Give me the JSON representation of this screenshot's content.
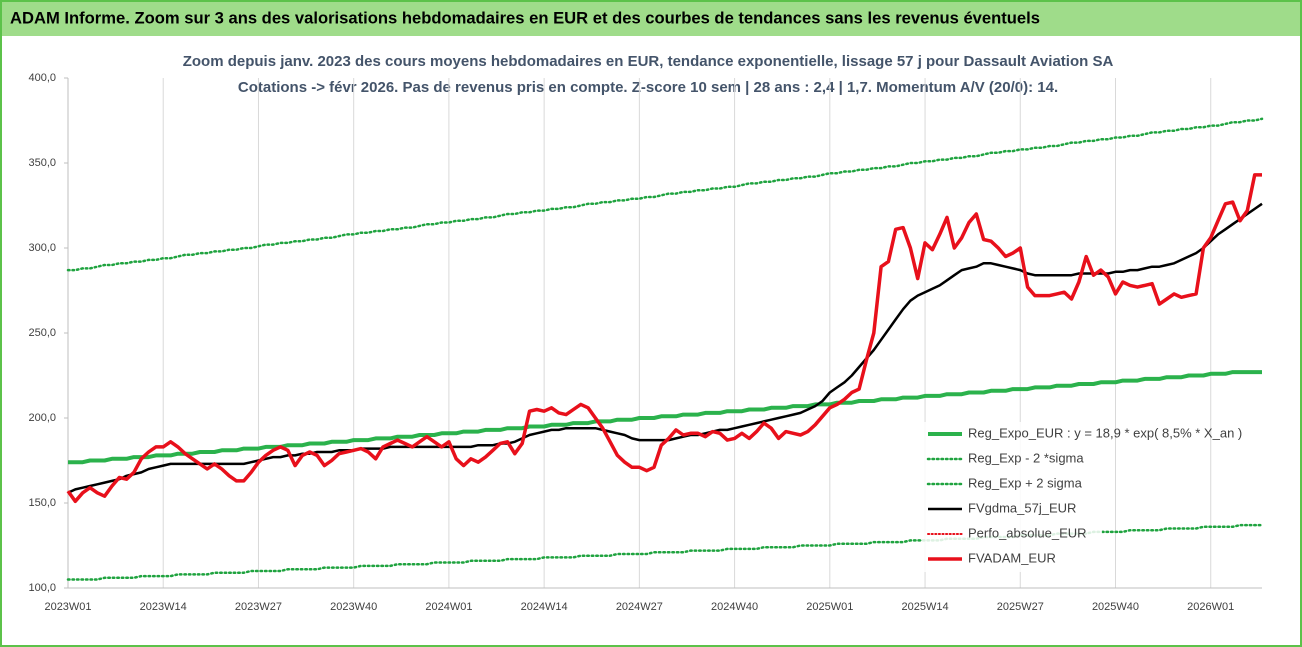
{
  "header": {
    "title": "ADAM Informe. Zoom sur 3 ans des valorisations hebdomadaires en EUR et des courbes de tendances sans les revenus éventuels"
  },
  "chart_data": {
    "type": "line",
    "title": "Zoom depuis janv. 2023 des cours moyens hebdomadaires en EUR, tendance exponentielle, lissage 57 j pour Dassault Aviation SA",
    "subtitle": "Cotations -> févr 2026. Pas de revenus pris en compte. Z-score 10 sem | 28 ans : 2,4 | 1,7. Momentum A/V (20/0): 14.",
    "categories": [
      "2023W01",
      null,
      null,
      null,
      null,
      null,
      null,
      null,
      null,
      null,
      null,
      null,
      null,
      "2023W14",
      null,
      null,
      null,
      null,
      null,
      null,
      null,
      null,
      null,
      null,
      null,
      null,
      "2023W27",
      null,
      null,
      null,
      null,
      null,
      null,
      null,
      null,
      null,
      null,
      null,
      null,
      "2023W40",
      null,
      null,
      null,
      null,
      null,
      null,
      null,
      null,
      null,
      null,
      null,
      null,
      "2024W01",
      null,
      null,
      null,
      null,
      null,
      null,
      null,
      null,
      null,
      null,
      null,
      null,
      "2024W14",
      null,
      null,
      null,
      null,
      null,
      null,
      null,
      null,
      null,
      null,
      null,
      null,
      "2024W27",
      null,
      null,
      null,
      null,
      null,
      null,
      null,
      null,
      null,
      null,
      null,
      null,
      "2024W40",
      null,
      null,
      null,
      null,
      null,
      null,
      null,
      null,
      null,
      null,
      null,
      null,
      "2025W01",
      null,
      null,
      null,
      null,
      null,
      null,
      null,
      null,
      null,
      null,
      null,
      null,
      "2025W14",
      null,
      null,
      null,
      null,
      null,
      null,
      null,
      null,
      null,
      null,
      null,
      null,
      "2025W27",
      null,
      null,
      null,
      null,
      null,
      null,
      null,
      null,
      null,
      null,
      null,
      null,
      "2025W40",
      null,
      null,
      null,
      null,
      null,
      null,
      null,
      null,
      null,
      null,
      null,
      null,
      "2026W01",
      null,
      null,
      null,
      null,
      null,
      null,
      null
    ],
    "ylim": [
      100,
      400
    ],
    "yticks": [
      {
        "value": 100,
        "label": "100,0"
      },
      {
        "value": 150,
        "label": "150,0"
      },
      {
        "value": 200,
        "label": "200,0"
      },
      {
        "value": 250,
        "label": "250,0"
      },
      {
        "value": 300,
        "label": "300,0"
      },
      {
        "value": 350,
        "label": "350,0"
      },
      {
        "value": 400,
        "label": "400,0"
      }
    ],
    "xgrid": true,
    "legend": "lower right",
    "series": [
      {
        "name": "Reg_Expo_EUR : y = 18,9 * exp( 8,5% *  X_an )",
        "color": "#2bb24c",
        "style": "solid",
        "width": 4,
        "values": [
          174,
          174,
          174,
          175,
          175,
          175,
          176,
          176,
          176,
          177,
          177,
          177,
          178,
          178,
          178,
          179,
          179,
          179,
          180,
          180,
          180,
          181,
          181,
          181,
          182,
          182,
          182,
          183,
          183,
          183,
          184,
          184,
          184,
          185,
          185,
          185,
          186,
          186,
          186,
          187,
          187,
          187,
          188,
          188,
          188,
          189,
          189,
          189,
          190,
          190,
          190,
          191,
          191,
          191,
          192,
          192,
          192,
          193,
          193,
          193,
          194,
          194,
          194,
          195,
          195,
          195,
          196,
          196,
          196,
          197,
          197,
          197,
          198,
          198,
          198,
          199,
          199,
          199,
          200,
          200,
          200,
          201,
          201,
          201,
          202,
          202,
          202,
          203,
          203,
          203,
          204,
          204,
          204,
          205,
          205,
          205,
          206,
          206,
          206,
          207,
          207,
          207,
          208,
          208,
          208,
          209,
          209,
          209,
          210,
          210,
          210,
          211,
          211,
          211,
          212,
          212,
          212,
          213,
          213,
          213,
          214,
          214,
          214,
          215,
          215,
          215,
          216,
          216,
          216,
          217,
          217,
          217,
          218,
          218,
          218,
          219,
          219,
          219,
          220,
          220,
          220,
          221,
          221,
          221,
          222,
          222,
          222,
          223,
          223,
          223,
          224,
          224,
          224,
          225,
          225,
          225,
          226,
          226,
          226,
          227,
          227,
          227,
          227,
          227
        ]
      },
      {
        "name": "Reg_Exp - 2 *sigma",
        "color": "#1fa33f",
        "style": "dotted",
        "width": 2.5,
        "values": [
          105,
          105,
          105,
          105,
          105,
          106,
          106,
          106,
          106,
          106,
          107,
          107,
          107,
          107,
          107,
          108,
          108,
          108,
          108,
          108,
          109,
          109,
          109,
          109,
          109,
          110,
          110,
          110,
          110,
          110,
          111,
          111,
          111,
          111,
          111,
          112,
          112,
          112,
          112,
          112,
          113,
          113,
          113,
          113,
          113,
          114,
          114,
          114,
          114,
          114,
          115,
          115,
          115,
          115,
          115,
          116,
          116,
          116,
          116,
          116,
          117,
          117,
          117,
          117,
          117,
          118,
          118,
          118,
          118,
          118,
          119,
          119,
          119,
          119,
          119,
          120,
          120,
          120,
          120,
          120,
          121,
          121,
          121,
          121,
          121,
          122,
          122,
          122,
          122,
          122,
          123,
          123,
          123,
          123,
          123,
          124,
          124,
          124,
          124,
          124,
          125,
          125,
          125,
          125,
          125,
          126,
          126,
          126,
          126,
          126,
          127,
          127,
          127,
          127,
          127,
          128,
          128,
          128,
          128,
          128,
          129,
          129,
          129,
          129,
          129,
          130,
          130,
          130,
          130,
          130,
          131,
          131,
          131,
          131,
          131,
          132,
          132,
          132,
          132,
          132,
          133,
          133,
          133,
          133,
          133,
          134,
          134,
          134,
          134,
          134,
          135,
          135,
          135,
          135,
          135,
          136,
          136,
          136,
          136,
          136,
          137,
          137,
          137,
          137
        ]
      },
      {
        "name": "Reg_Exp + 2 sigma",
        "color": "#1fa33f",
        "style": "dotted",
        "width": 2.5,
        "values": [
          287,
          287,
          288,
          288,
          289,
          290,
          290,
          291,
          291,
          292,
          292,
          293,
          293,
          294,
          294,
          295,
          296,
          296,
          297,
          297,
          298,
          298,
          299,
          299,
          300,
          300,
          301,
          302,
          302,
          303,
          303,
          304,
          304,
          305,
          305,
          306,
          306,
          307,
          308,
          308,
          309,
          309,
          310,
          310,
          311,
          311,
          312,
          312,
          313,
          314,
          314,
          315,
          315,
          316,
          316,
          317,
          317,
          318,
          318,
          319,
          320,
          320,
          321,
          321,
          322,
          322,
          323,
          323,
          324,
          324,
          325,
          326,
          326,
          327,
          327,
          328,
          328,
          329,
          329,
          330,
          330,
          331,
          332,
          332,
          333,
          333,
          334,
          334,
          335,
          335,
          336,
          336,
          337,
          338,
          338,
          339,
          339,
          340,
          340,
          341,
          341,
          342,
          342,
          343,
          344,
          344,
          345,
          345,
          346,
          346,
          347,
          347,
          348,
          348,
          349,
          350,
          350,
          351,
          351,
          352,
          352,
          353,
          353,
          354,
          354,
          355,
          356,
          356,
          357,
          357,
          358,
          358,
          359,
          359,
          360,
          360,
          361,
          362,
          362,
          363,
          363,
          364,
          364,
          365,
          365,
          366,
          366,
          367,
          368,
          368,
          369,
          369,
          370,
          370,
          371,
          371,
          372,
          372,
          373,
          374,
          374,
          375,
          375,
          376
        ]
      },
      {
        "name": "FVgdma_57j_EUR",
        "color": "#000000",
        "style": "solid",
        "width": 2.5,
        "values": [
          156,
          158,
          159,
          160,
          161,
          162,
          163,
          164,
          166,
          167,
          168,
          170,
          171,
          172,
          173,
          173,
          173,
          173,
          173,
          173,
          173,
          173,
          173,
          173,
          173,
          174,
          175,
          176,
          177,
          177,
          178,
          178,
          179,
          179,
          180,
          180,
          180,
          181,
          181,
          181,
          182,
          182,
          182,
          182,
          183,
          183,
          183,
          183,
          183,
          183,
          183,
          183,
          183,
          183,
          183,
          183,
          184,
          184,
          184,
          185,
          185,
          186,
          188,
          190,
          191,
          192,
          193,
          193,
          194,
          194,
          194,
          194,
          194,
          193,
          192,
          191,
          190,
          188,
          187,
          187,
          187,
          187,
          187,
          188,
          189,
          190,
          190,
          191,
          192,
          193,
          193,
          194,
          195,
          196,
          197,
          198,
          199,
          200,
          201,
          202,
          203,
          205,
          207,
          210,
          215,
          218,
          221,
          225,
          230,
          235,
          240,
          246,
          252,
          258,
          264,
          269,
          272,
          274,
          276,
          278,
          281,
          284,
          287,
          288,
          289,
          291,
          291,
          290,
          289,
          288,
          287,
          285,
          284,
          284,
          284,
          284,
          284,
          284,
          285,
          285,
          285,
          285,
          285,
          286,
          286,
          287,
          287,
          288,
          289,
          289,
          290,
          291,
          293,
          295,
          297,
          300,
          304,
          308,
          311,
          314,
          317,
          320,
          323,
          326
        ]
      },
      {
        "name": "Perfo_absolue_EUR",
        "color": "#e8101b",
        "style": "dotted",
        "width": 2,
        "values": [
          null,
          null,
          null,
          null,
          null,
          null,
          null,
          null,
          null,
          null,
          null,
          null,
          null,
          null,
          null,
          null,
          null,
          null,
          null,
          null,
          null,
          null,
          null,
          null,
          null,
          null,
          null,
          null,
          null,
          null,
          null,
          null,
          null,
          null,
          null,
          null,
          null,
          null,
          null,
          null,
          null,
          null,
          null,
          null,
          null,
          null,
          null,
          null,
          null,
          null,
          null,
          null,
          null,
          null,
          null,
          null,
          null,
          null,
          null,
          null,
          null,
          null,
          null,
          null,
          null,
          null,
          null,
          null,
          null,
          null,
          null,
          null,
          null,
          null,
          null,
          null,
          null,
          null,
          null,
          null,
          null,
          null,
          null,
          null,
          null,
          null,
          null,
          null,
          null,
          null,
          null,
          null,
          null,
          null,
          null,
          null,
          null,
          null,
          null,
          null,
          null,
          null,
          null,
          null,
          null,
          null,
          null,
          null,
          null,
          null,
          null,
          null,
          null,
          null,
          null,
          null,
          null,
          null,
          null,
          null,
          null,
          null,
          null,
          null,
          null,
          null,
          null,
          null,
          null,
          null,
          null,
          null,
          null,
          null,
          null,
          null,
          null,
          null,
          null,
          null,
          null,
          null,
          null,
          null,
          null,
          null,
          null,
          null,
          null,
          null,
          null,
          null,
          null,
          null,
          null,
          null,
          null,
          null,
          null,
          null,
          null,
          null,
          null,
          null
        ]
      },
      {
        "name": "FVADAM_EUR",
        "color": "#e8101b",
        "style": "solid",
        "width": 3.5,
        "values": [
          157,
          151,
          156,
          159,
          156,
          154,
          160,
          165,
          164,
          168,
          176,
          180,
          183,
          183,
          186,
          183,
          179,
          176,
          173,
          170,
          173,
          170,
          166,
          163,
          163,
          168,
          174,
          178,
          181,
          183,
          181,
          172,
          178,
          180,
          178,
          172,
          175,
          179,
          180,
          181,
          182,
          180,
          176,
          183,
          185,
          187,
          185,
          183,
          186,
          189,
          186,
          183,
          186,
          176,
          172,
          176,
          174,
          177,
          181,
          185,
          186,
          179,
          185,
          204,
          205,
          204,
          206,
          203,
          202,
          205,
          208,
          206,
          200,
          194,
          186,
          178,
          174,
          171,
          171,
          169,
          171,
          184,
          188,
          193,
          190,
          191,
          191,
          189,
          192,
          191,
          187,
          188,
          191,
          188,
          192,
          197,
          194,
          188,
          192,
          191,
          190,
          192,
          196,
          201,
          206,
          208,
          211,
          215,
          217,
          234,
          250,
          289,
          292,
          311,
          312,
          300,
          282,
          303,
          299,
          308,
          318,
          300,
          306,
          315,
          320,
          305,
          304,
          300,
          295,
          297,
          300,
          277,
          272,
          272,
          272,
          273,
          274,
          270,
          280,
          295,
          284,
          287,
          283,
          273,
          280,
          278,
          277,
          278,
          279,
          267,
          270,
          273,
          271,
          272,
          273,
          300,
          306,
          316,
          326,
          327,
          316,
          322,
          343,
          343
        ]
      }
    ]
  }
}
